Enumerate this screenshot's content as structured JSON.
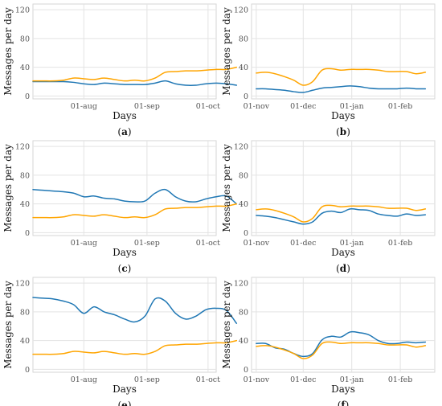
{
  "figure": {
    "ylabel": "Messages per day",
    "xlabel": "Days"
  },
  "chart_data": [
    {
      "id": "a",
      "type": "line",
      "panel_label": [
        "(",
        "a",
        ")"
      ],
      "xlabel": "Days",
      "ylabel": "Messages per day",
      "xlim": [
        0,
        90
      ],
      "ylim": [
        -4,
        128
      ],
      "x_ticks": [
        {
          "x": 25,
          "label": "01-aug"
        },
        {
          "x": 56,
          "label": "01-sep"
        },
        {
          "x": 86,
          "label": "01-oct"
        }
      ],
      "y_ticks": [
        0,
        40,
        80,
        120
      ],
      "grid": true,
      "series": [
        {
          "color": "#1f77b4",
          "x": [
            0,
            5,
            10,
            15,
            20,
            25,
            30,
            35,
            40,
            45,
            50,
            55,
            60,
            65,
            70,
            75,
            80,
            85,
            90,
            95,
            100
          ],
          "y": [
            20,
            20,
            20,
            20,
            19,
            17,
            16,
            18,
            17,
            16,
            16,
            16,
            18,
            21,
            17,
            15,
            15,
            17,
            18,
            17,
            15
          ]
        },
        {
          "color": "#ffa500",
          "x": [
            0,
            5,
            10,
            15,
            20,
            25,
            30,
            35,
            40,
            45,
            50,
            55,
            60,
            65,
            70,
            75,
            80,
            85,
            90,
            95,
            100
          ],
          "y": [
            21,
            21,
            21,
            22,
            25,
            24,
            23,
            25,
            23,
            21,
            22,
            21,
            25,
            33,
            34,
            35,
            35,
            36,
            37,
            37,
            40
          ]
        }
      ]
    },
    {
      "id": "b",
      "type": "line",
      "panel_label": [
        "(",
        "b",
        ")"
      ],
      "xlabel": "Days",
      "ylabel": "Messages per day",
      "xlim": [
        -3,
        114
      ],
      "ylim": [
        -4,
        128
      ],
      "x_ticks": [
        {
          "x": 0,
          "label": "01-nov"
        },
        {
          "x": 30,
          "label": "01-dec"
        },
        {
          "x": 61,
          "label": "01-jan"
        },
        {
          "x": 92,
          "label": "01-feb"
        }
      ],
      "y_ticks": [
        0,
        40,
        80,
        120
      ],
      "grid": true,
      "series": [
        {
          "color": "#1f77b4",
          "x": [
            0,
            6,
            12,
            18,
            24,
            30,
            36,
            42,
            48,
            54,
            60,
            66,
            72,
            78,
            84,
            90,
            96,
            102,
            108
          ],
          "y": [
            10,
            10,
            9,
            8,
            6,
            5,
            8,
            11,
            12,
            13,
            14,
            13,
            11,
            10,
            10,
            10,
            11,
            10,
            10
          ]
        },
        {
          "color": "#ffa500",
          "x": [
            0,
            6,
            12,
            18,
            24,
            30,
            36,
            42,
            48,
            54,
            60,
            66,
            72,
            78,
            84,
            90,
            96,
            102,
            108
          ],
          "y": [
            32,
            33,
            31,
            27,
            22,
            15,
            20,
            36,
            38,
            36,
            37,
            37,
            37,
            36,
            34,
            34,
            34,
            31,
            33
          ]
        }
      ]
    },
    {
      "id": "c",
      "type": "line",
      "panel_label": [
        "(",
        "c",
        ")"
      ],
      "xlabel": "Days",
      "ylabel": "Messages per day",
      "xlim": [
        0,
        90
      ],
      "ylim": [
        -4,
        128
      ],
      "x_ticks": [
        {
          "x": 25,
          "label": "01-aug"
        },
        {
          "x": 56,
          "label": "01-sep"
        },
        {
          "x": 86,
          "label": "01-oct"
        }
      ],
      "y_ticks": [
        0,
        40,
        80,
        120
      ],
      "grid": true,
      "series": [
        {
          "color": "#1f77b4",
          "x": [
            0,
            5,
            10,
            15,
            20,
            25,
            30,
            35,
            40,
            45,
            50,
            55,
            60,
            65,
            70,
            75,
            80,
            85,
            90,
            95,
            100
          ],
          "y": [
            60,
            59,
            58,
            57,
            55,
            50,
            51,
            48,
            47,
            44,
            43,
            44,
            55,
            60,
            50,
            44,
            43,
            47,
            50,
            51,
            40
          ]
        },
        {
          "color": "#ffa500",
          "x": [
            0,
            5,
            10,
            15,
            20,
            25,
            30,
            35,
            40,
            45,
            50,
            55,
            60,
            65,
            70,
            75,
            80,
            85,
            90,
            95,
            100
          ],
          "y": [
            21,
            21,
            21,
            22,
            25,
            24,
            23,
            25,
            23,
            21,
            22,
            21,
            25,
            33,
            34,
            35,
            35,
            36,
            37,
            37,
            40
          ]
        }
      ]
    },
    {
      "id": "d",
      "type": "line",
      "panel_label": [
        "(",
        "d",
        ")"
      ],
      "xlabel": "Days",
      "ylabel": "Messages per day",
      "xlim": [
        -3,
        114
      ],
      "ylim": [
        -4,
        128
      ],
      "x_ticks": [
        {
          "x": 0,
          "label": "01-nov"
        },
        {
          "x": 30,
          "label": "01-dec"
        },
        {
          "x": 61,
          "label": "01-jan"
        },
        {
          "x": 92,
          "label": "01-feb"
        }
      ],
      "y_ticks": [
        0,
        40,
        80,
        120
      ],
      "grid": true,
      "series": [
        {
          "color": "#1f77b4",
          "x": [
            0,
            6,
            12,
            18,
            24,
            30,
            36,
            42,
            48,
            54,
            60,
            66,
            72,
            78,
            84,
            90,
            96,
            102,
            108
          ],
          "y": [
            24,
            23,
            21,
            18,
            15,
            12,
            15,
            27,
            30,
            28,
            33,
            32,
            31,
            26,
            24,
            23,
            26,
            24,
            25
          ]
        },
        {
          "color": "#ffa500",
          "x": [
            0,
            6,
            12,
            18,
            24,
            30,
            36,
            42,
            48,
            54,
            60,
            66,
            72,
            78,
            84,
            90,
            96,
            102,
            108
          ],
          "y": [
            32,
            33,
            31,
            27,
            22,
            15,
            20,
            36,
            38,
            36,
            37,
            37,
            37,
            36,
            34,
            34,
            34,
            31,
            33
          ]
        }
      ]
    },
    {
      "id": "e",
      "type": "line",
      "panel_label": [
        "(",
        "e",
        ")"
      ],
      "xlabel": "Days",
      "ylabel": "Messages per day",
      "xlim": [
        0,
        90
      ],
      "ylim": [
        -4,
        128
      ],
      "x_ticks": [
        {
          "x": 25,
          "label": "01-aug"
        },
        {
          "x": 56,
          "label": "01-sep"
        },
        {
          "x": 86,
          "label": "01-oct"
        }
      ],
      "y_ticks": [
        0,
        40,
        80,
        120
      ],
      "grid": true,
      "series": [
        {
          "color": "#1f77b4",
          "x": [
            0,
            5,
            10,
            15,
            20,
            25,
            30,
            35,
            40,
            45,
            50,
            55,
            60,
            65,
            70,
            75,
            80,
            85,
            90,
            95,
            100
          ],
          "y": [
            100,
            99,
            98,
            95,
            90,
            78,
            87,
            80,
            76,
            70,
            66,
            74,
            98,
            95,
            78,
            70,
            74,
            83,
            85,
            82,
            64
          ]
        },
        {
          "color": "#ffa500",
          "x": [
            0,
            5,
            10,
            15,
            20,
            25,
            30,
            35,
            40,
            45,
            50,
            55,
            60,
            65,
            70,
            75,
            80,
            85,
            90,
            95,
            100
          ],
          "y": [
            21,
            21,
            21,
            22,
            25,
            24,
            23,
            25,
            23,
            21,
            22,
            21,
            25,
            33,
            34,
            35,
            35,
            36,
            37,
            37,
            40
          ]
        }
      ]
    },
    {
      "id": "f",
      "type": "line",
      "panel_label": [
        "(",
        "f",
        ")"
      ],
      "xlabel": "Days",
      "ylabel": "Messages per day",
      "xlim": [
        -3,
        114
      ],
      "ylim": [
        -4,
        128
      ],
      "x_ticks": [
        {
          "x": 0,
          "label": "01-nov"
        },
        {
          "x": 30,
          "label": "01-dec"
        },
        {
          "x": 61,
          "label": "01-jan"
        },
        {
          "x": 92,
          "label": "01-feb"
        }
      ],
      "y_ticks": [
        0,
        40,
        80,
        120
      ],
      "grid": true,
      "series": [
        {
          "color": "#1f77b4",
          "x": [
            0,
            6,
            12,
            18,
            24,
            30,
            36,
            42,
            48,
            54,
            60,
            66,
            72,
            78,
            84,
            90,
            96,
            102,
            108
          ],
          "y": [
            36,
            36,
            30,
            28,
            22,
            18,
            22,
            41,
            46,
            45,
            52,
            51,
            48,
            40,
            36,
            36,
            38,
            37,
            38
          ]
        },
        {
          "color": "#ffa500",
          "x": [
            0,
            6,
            12,
            18,
            24,
            30,
            36,
            42,
            48,
            54,
            60,
            66,
            72,
            78,
            84,
            90,
            96,
            102,
            108
          ],
          "y": [
            32,
            33,
            31,
            27,
            22,
            15,
            20,
            36,
            38,
            36,
            37,
            37,
            37,
            36,
            34,
            34,
            34,
            31,
            33
          ]
        }
      ]
    }
  ]
}
